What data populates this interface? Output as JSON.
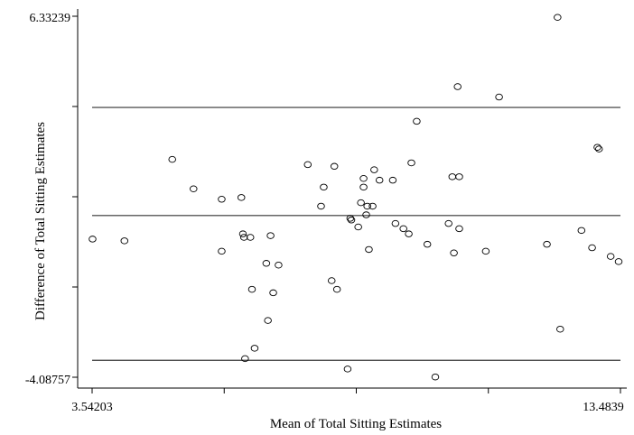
{
  "chart_data": {
    "type": "scatter",
    "xlabel": "Mean of Total Sitting Estimates",
    "ylabel": "Difference of Total Sitting Estimates",
    "xlim": [
      3.54203,
      13.4839
    ],
    "ylim": [
      -4.08757,
      6.33239
    ],
    "x_tick_labels": [
      "3.54203",
      "13.4839"
    ],
    "y_tick_labels": [
      "6.33239",
      "-4.08757"
    ],
    "reference_lines": [
      {
        "name": "upper",
        "y": 3.7
      },
      {
        "name": "mean",
        "y": 0.58
      },
      {
        "name": "lower",
        "y": -3.6
      }
    ],
    "grid": false,
    "marker": "open-circle",
    "points": [
      {
        "x": 3.55,
        "y": -0.1
      },
      {
        "x": 4.15,
        "y": -0.15
      },
      {
        "x": 5.05,
        "y": 2.2
      },
      {
        "x": 5.45,
        "y": 1.35
      },
      {
        "x": 5.98,
        "y": 1.05
      },
      {
        "x": 5.98,
        "y": -0.45
      },
      {
        "x": 6.35,
        "y": 1.1
      },
      {
        "x": 6.38,
        "y": 0.05
      },
      {
        "x": 6.4,
        "y": -0.05
      },
      {
        "x": 6.52,
        "y": -0.05
      },
      {
        "x": 6.55,
        "y": -1.55
      },
      {
        "x": 6.6,
        "y": -3.25
      },
      {
        "x": 6.42,
        "y": -3.55
      },
      {
        "x": 6.82,
        "y": -0.8
      },
      {
        "x": 6.85,
        "y": -2.45
      },
      {
        "x": 6.9,
        "y": 0.0
      },
      {
        "x": 6.95,
        "y": -1.65
      },
      {
        "x": 7.05,
        "y": -0.85
      },
      {
        "x": 7.6,
        "y": 2.05
      },
      {
        "x": 7.9,
        "y": 1.4
      },
      {
        "x": 7.85,
        "y": 0.85
      },
      {
        "x": 8.1,
        "y": 2.0
      },
      {
        "x": 8.05,
        "y": -1.3
      },
      {
        "x": 8.15,
        "y": -1.55
      },
      {
        "x": 8.35,
        "y": -3.85
      },
      {
        "x": 8.4,
        "y": 0.5
      },
      {
        "x": 8.42,
        "y": 0.45
      },
      {
        "x": 8.55,
        "y": 0.25
      },
      {
        "x": 8.6,
        "y": 0.95
      },
      {
        "x": 8.65,
        "y": 1.4
      },
      {
        "x": 8.65,
        "y": 1.65
      },
      {
        "x": 8.7,
        "y": 0.6
      },
      {
        "x": 8.72,
        "y": 0.85
      },
      {
        "x": 8.75,
        "y": -0.4
      },
      {
        "x": 8.82,
        "y": 0.85
      },
      {
        "x": 8.85,
        "y": 1.9
      },
      {
        "x": 8.95,
        "y": 1.6
      },
      {
        "x": 9.2,
        "y": 1.6
      },
      {
        "x": 9.25,
        "y": 0.35
      },
      {
        "x": 9.4,
        "y": 0.2
      },
      {
        "x": 9.5,
        "y": 0.05
      },
      {
        "x": 9.55,
        "y": 2.1
      },
      {
        "x": 9.65,
        "y": 3.3
      },
      {
        "x": 9.85,
        "y": -0.25
      },
      {
        "x": 10.0,
        "y": -4.08
      },
      {
        "x": 10.25,
        "y": 0.35
      },
      {
        "x": 10.32,
        "y": 1.7
      },
      {
        "x": 10.35,
        "y": -0.5
      },
      {
        "x": 10.42,
        "y": 4.3
      },
      {
        "x": 10.45,
        "y": 1.7
      },
      {
        "x": 10.45,
        "y": 0.2
      },
      {
        "x": 10.95,
        "y": -0.45
      },
      {
        "x": 11.2,
        "y": 4.0
      },
      {
        "x": 12.1,
        "y": -0.25
      },
      {
        "x": 12.3,
        "y": 6.3
      },
      {
        "x": 12.35,
        "y": -2.7
      },
      {
        "x": 12.75,
        "y": 0.15
      },
      {
        "x": 12.95,
        "y": -0.35
      },
      {
        "x": 13.05,
        "y": 2.55
      },
      {
        "x": 13.08,
        "y": 2.5
      },
      {
        "x": 13.3,
        "y": -0.6
      },
      {
        "x": 13.45,
        "y": -0.75
      }
    ]
  }
}
